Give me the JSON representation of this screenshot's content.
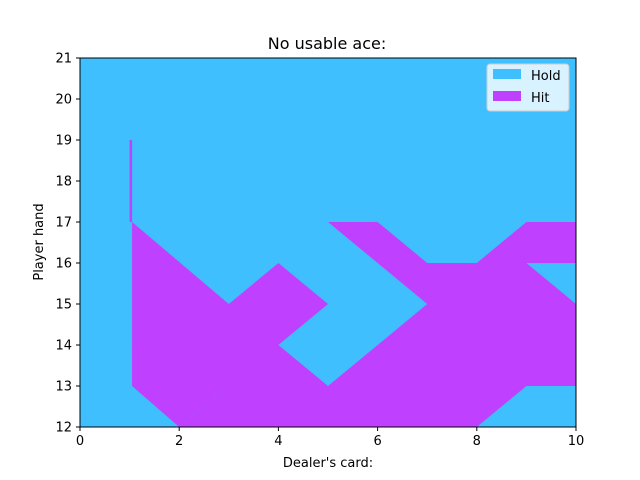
{
  "chart_data": {
    "type": "area",
    "title": "No usable ace:",
    "xlabel": "Dealer's card:",
    "ylabel": "Player hand",
    "xlim": [
      0,
      10
    ],
    "ylim": [
      12,
      21
    ],
    "xticks": [
      "0",
      "2",
      "4",
      "6",
      "8",
      "10"
    ],
    "yticks": [
      "12",
      "13",
      "14",
      "15",
      "16",
      "17",
      "18",
      "19",
      "20",
      "21"
    ],
    "legend_position": "top-right",
    "background_series": "Hold",
    "series": [
      {
        "name": "Hold",
        "color": "#40bfff"
      },
      {
        "name": "Hit",
        "color": "#bf40ff",
        "regions": [
          [
            [
              1,
              19
            ],
            [
              1.05,
              19
            ],
            [
              1.05,
              17
            ],
            [
              1,
              17
            ]
          ],
          [
            [
              1.05,
              17
            ],
            [
              3,
              15
            ],
            [
              4,
              16
            ],
            [
              5,
              15
            ],
            [
              3,
              13
            ],
            [
              2,
              13
            ],
            [
              1.05,
              13
            ]
          ],
          [
            [
              4,
              14
            ],
            [
              5,
              15
            ],
            [
              4,
              14
            ]
          ],
          [
            [
              5,
              17
            ],
            [
              6,
              17
            ],
            [
              7,
              16
            ],
            [
              8,
              16
            ],
            [
              9,
              17
            ],
            [
              10,
              17
            ],
            [
              10,
              16
            ],
            [
              9,
              16
            ],
            [
              10,
              15
            ],
            [
              10,
              13
            ],
            [
              9,
              13
            ],
            [
              8,
              12
            ],
            [
              2,
              12
            ],
            [
              3,
              13
            ],
            [
              3,
              14
            ],
            [
              4,
              14
            ],
            [
              5,
              13
            ],
            [
              6,
              14
            ],
            [
              7,
              15
            ],
            [
              6,
              16
            ]
          ],
          [
            [
              1.05,
              13
            ],
            [
              1.05,
              14
            ],
            [
              2,
              15
            ],
            [
              3,
              14
            ],
            [
              3,
              13
            ],
            [
              2,
              12
            ],
            [
              1.05,
              13
            ]
          ]
        ]
      }
    ]
  }
}
